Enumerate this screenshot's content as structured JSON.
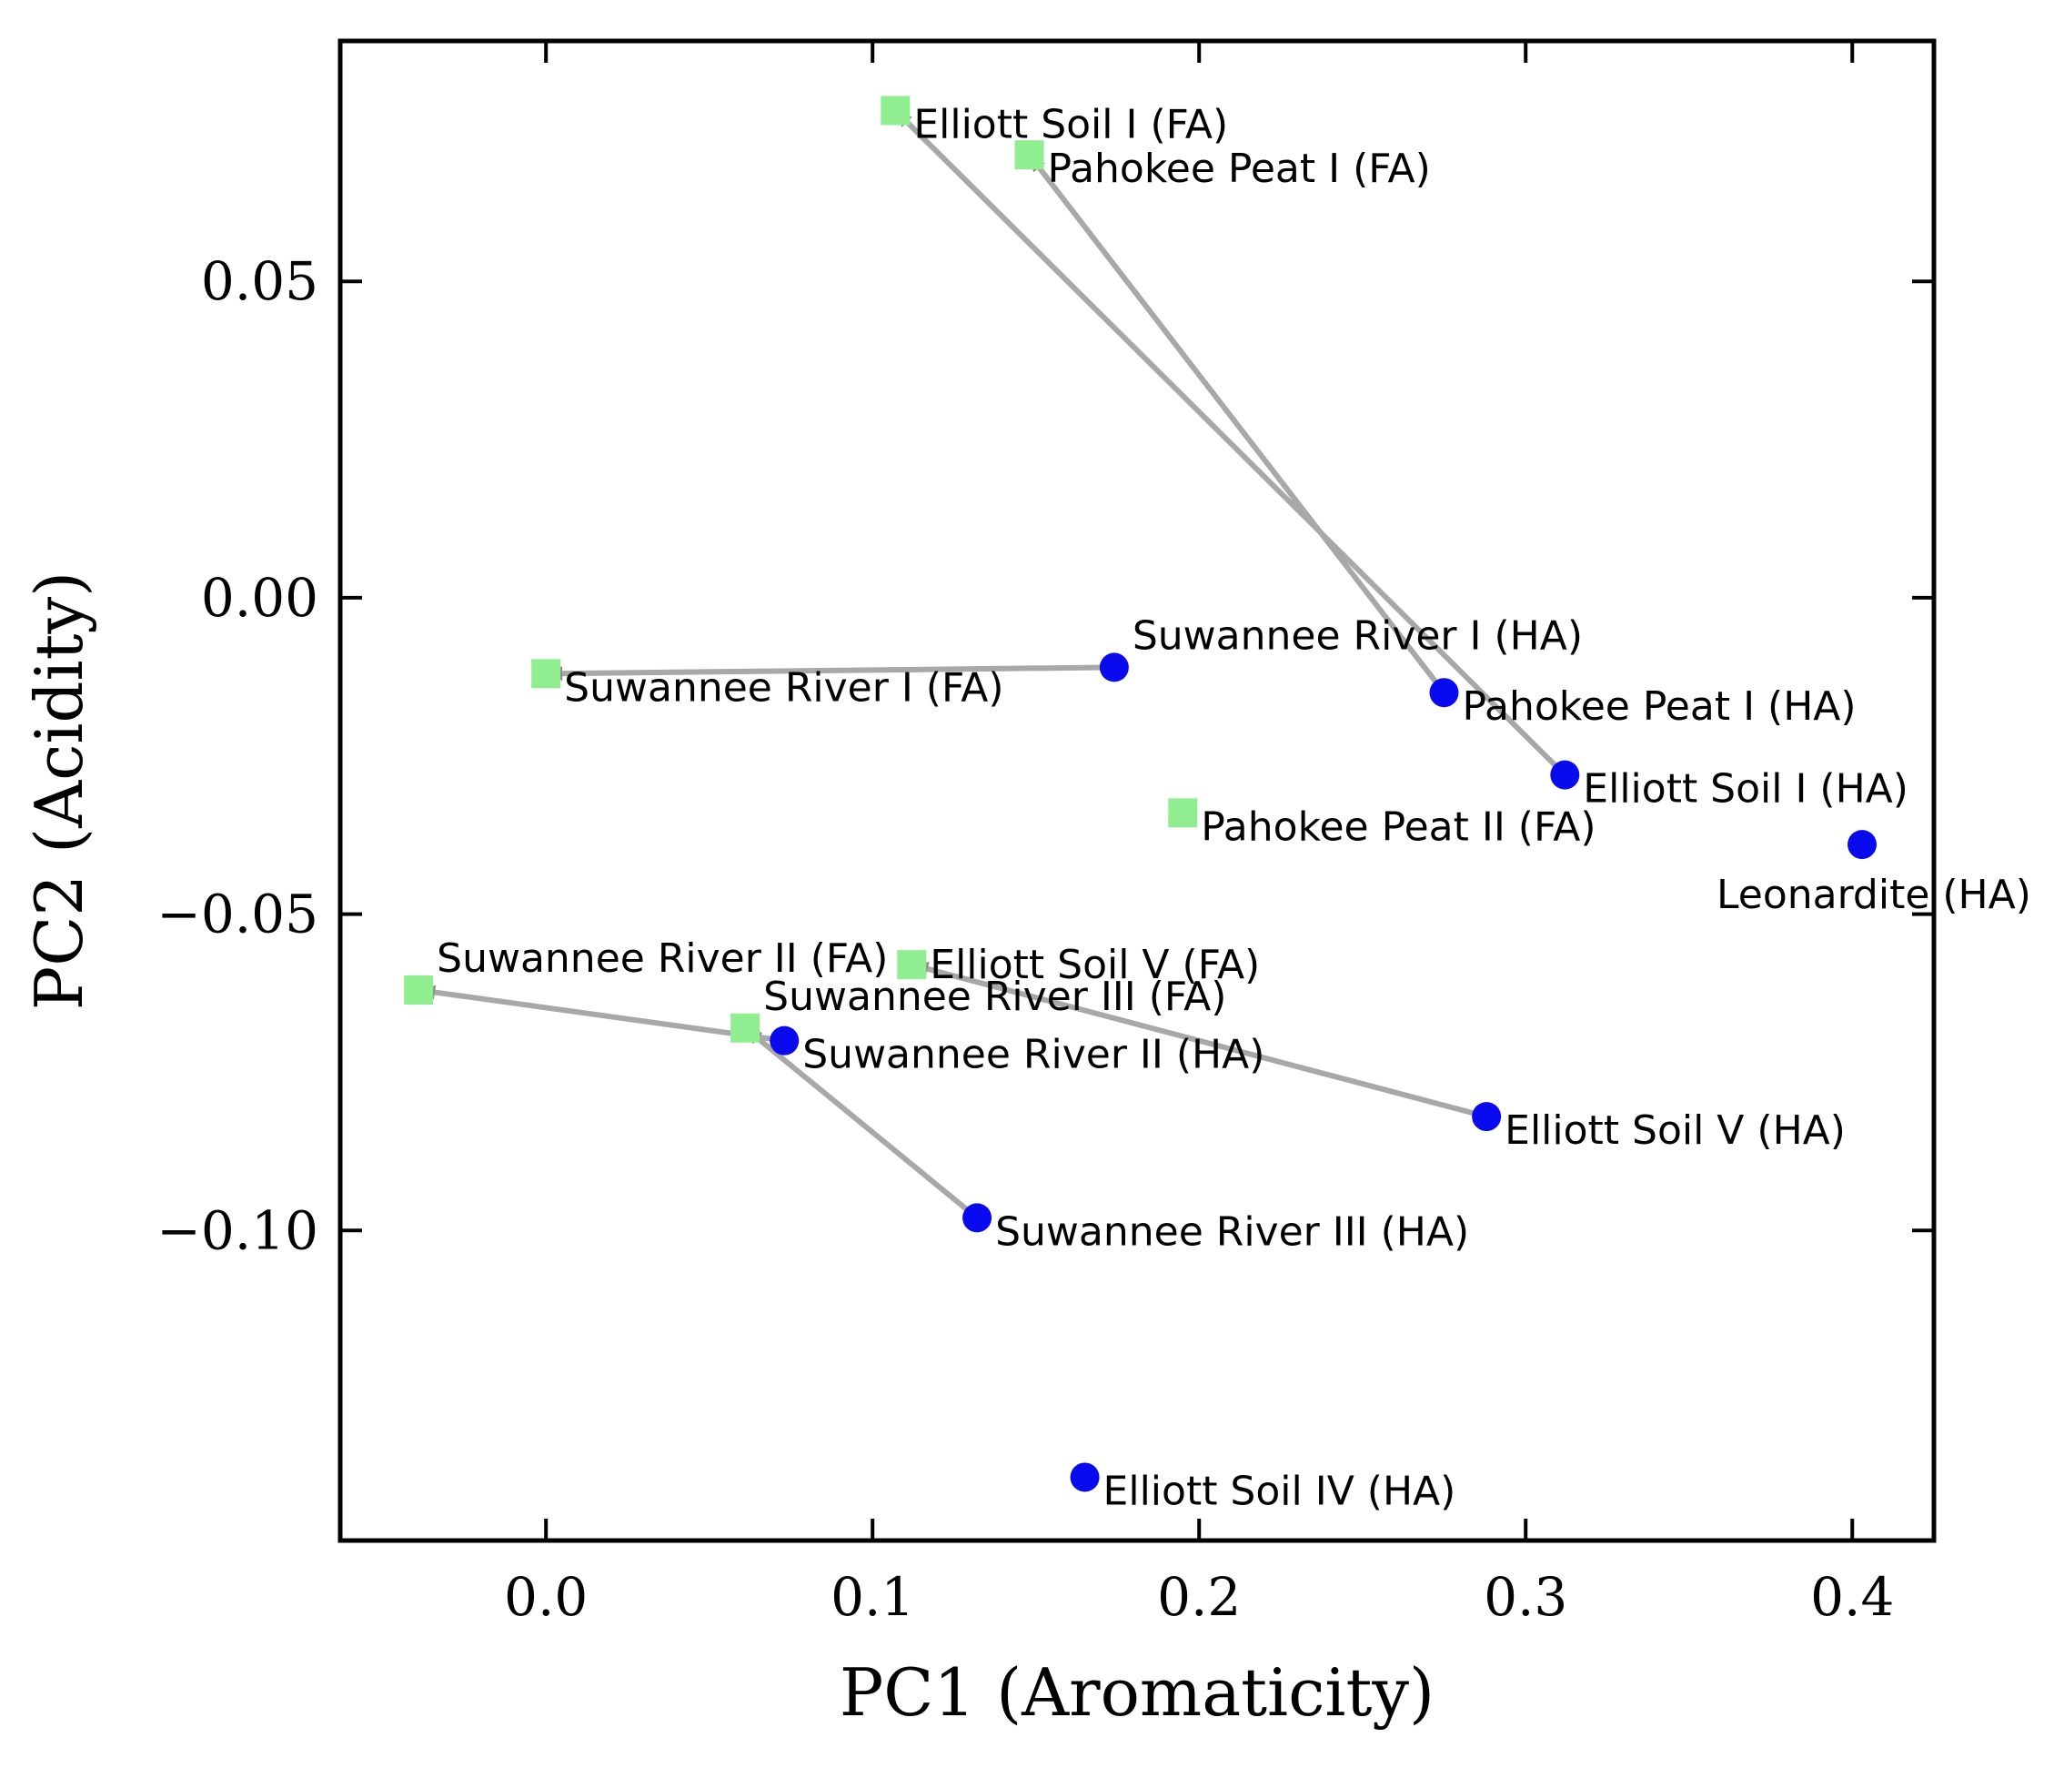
{
  "chart_data": {
    "type": "scatter",
    "title": "",
    "xlabel": "PC1 (Aromaticity)",
    "ylabel": "PC2 (Acidity)",
    "xlim": [
      -0.063,
      0.425
    ],
    "ylim": [
      -0.149,
      0.088
    ],
    "xticks": [
      0.0,
      0.1,
      0.2,
      0.3,
      0.4
    ],
    "xtick_labels": [
      "0.0",
      "0.1",
      "0.2",
      "0.3",
      "0.4"
    ],
    "yticks": [
      0.05,
      0.0,
      -0.05,
      -0.1
    ],
    "ytick_labels": [
      "0.05",
      "0.00",
      "−0.05",
      "−0.10"
    ],
    "grid": false,
    "colors": {
      "HA": "#0a0aee",
      "FA": "#90ee90",
      "arrow": "#a8a8a8"
    },
    "series": [
      {
        "name": "HA",
        "marker": "circle",
        "points": [
          {
            "label": "Suwannee River I (HA)",
            "x": 0.174,
            "y": -0.011
          },
          {
            "label": "Pahokee Peat I (HA)",
            "x": 0.275,
            "y": -0.015
          },
          {
            "label": "Elliott Soil I (HA)",
            "x": 0.312,
            "y": -0.028
          },
          {
            "label": "Leonardite (HA)",
            "x": 0.403,
            "y": -0.039
          },
          {
            "label": "Suwannee River II (HA)",
            "x": 0.073,
            "y": -0.07
          },
          {
            "label": "Elliott Soil V (HA)",
            "x": 0.288,
            "y": -0.082
          },
          {
            "label": "Suwannee River III (HA)",
            "x": 0.132,
            "y": -0.098
          },
          {
            "label": "Elliott Soil IV (HA)",
            "x": 0.165,
            "y": -0.139
          }
        ]
      },
      {
        "name": "FA",
        "marker": "square",
        "points": [
          {
            "label": "Elliott Soil I (FA)",
            "x": 0.107,
            "y": 0.077
          },
          {
            "label": "Pahokee Peat I (FA)",
            "x": 0.148,
            "y": 0.07
          },
          {
            "label": "Suwannee River I (FA)",
            "x": 0.0,
            "y": -0.012
          },
          {
            "label": "Pahokee Peat II (FA)",
            "x": 0.195,
            "y": -0.034
          },
          {
            "label": "Suwannee River II (FA)",
            "x": -0.039,
            "y": -0.062
          },
          {
            "label": "Elliott Soil V (FA)",
            "x": 0.112,
            "y": -0.058
          },
          {
            "label": "Suwannee River III (FA)",
            "x": 0.061,
            "y": -0.068
          }
        ]
      }
    ],
    "arrows": [
      {
        "from": "Elliott Soil I (HA)",
        "to": "Elliott Soil I (FA)"
      },
      {
        "from": "Pahokee Peat I (HA)",
        "to": "Pahokee Peat I (FA)"
      },
      {
        "from": "Suwannee River I (HA)",
        "to": "Suwannee River I (FA)"
      },
      {
        "from": "Suwannee River II (HA)",
        "to": "Suwannee River II (FA)"
      },
      {
        "from": "Elliott Soil V (HA)",
        "to": "Elliott Soil V (FA)"
      },
      {
        "from": "Suwannee River III (HA)",
        "to": "Suwannee River III (FA)"
      }
    ]
  }
}
